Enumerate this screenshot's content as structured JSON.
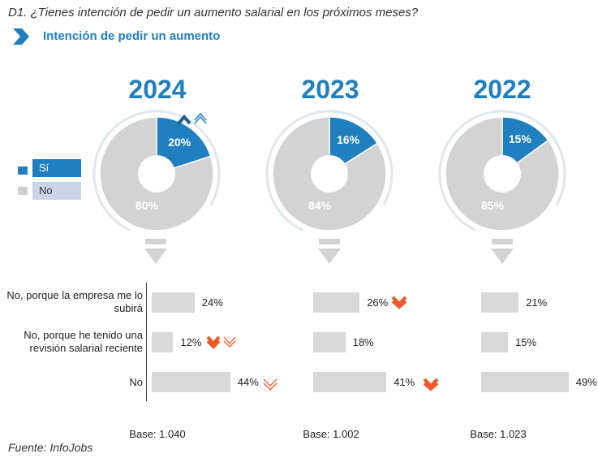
{
  "question": "D1. ¿Tienes intención de pedir un aumento salarial en los próximos meses?",
  "subtitle": "Intención de pedir un aumento",
  "legend": [
    {
      "label": "Sí",
      "color": "#1f7fbf"
    },
    {
      "label": "No",
      "color": "#d3d3d3"
    }
  ],
  "source": "Fuente: InfoJobs",
  "chart_data": [
    {
      "type": "pie",
      "title": "2024",
      "slices": [
        {
          "label": "Sí",
          "value": 20,
          "text": "20%"
        },
        {
          "label": "No",
          "value": 80,
          "text": "80%"
        }
      ],
      "trend": "up"
    },
    {
      "type": "pie",
      "title": "2023",
      "slices": [
        {
          "label": "Sí",
          "value": 16,
          "text": "16%"
        },
        {
          "label": "No",
          "value": 84,
          "text": "84%"
        }
      ]
    },
    {
      "type": "pie",
      "title": "2022",
      "slices": [
        {
          "label": "Sí",
          "value": 15,
          "text": "15%"
        },
        {
          "label": "No",
          "value": 85,
          "text": "85%"
        }
      ]
    },
    {
      "type": "bar",
      "orientation": "horizontal",
      "categories": [
        "No, porque la empresa me lo subirá",
        "No, porque he tenido una revisión salarial reciente",
        "No"
      ],
      "series": [
        {
          "name": "2024",
          "values": [
            24,
            12,
            44
          ],
          "labels": [
            "24%",
            "12%",
            "44%"
          ],
          "base": "Base: 1.040"
        },
        {
          "name": "2023",
          "values": [
            26,
            18,
            41
          ],
          "labels": [
            "26%",
            "18%",
            "41%"
          ],
          "base": "Base: 1.002"
        },
        {
          "name": "2022",
          "values": [
            21,
            15,
            49
          ],
          "labels": [
            "21%",
            "15%",
            "49%"
          ],
          "base": "Base: 1.023"
        }
      ]
    }
  ]
}
